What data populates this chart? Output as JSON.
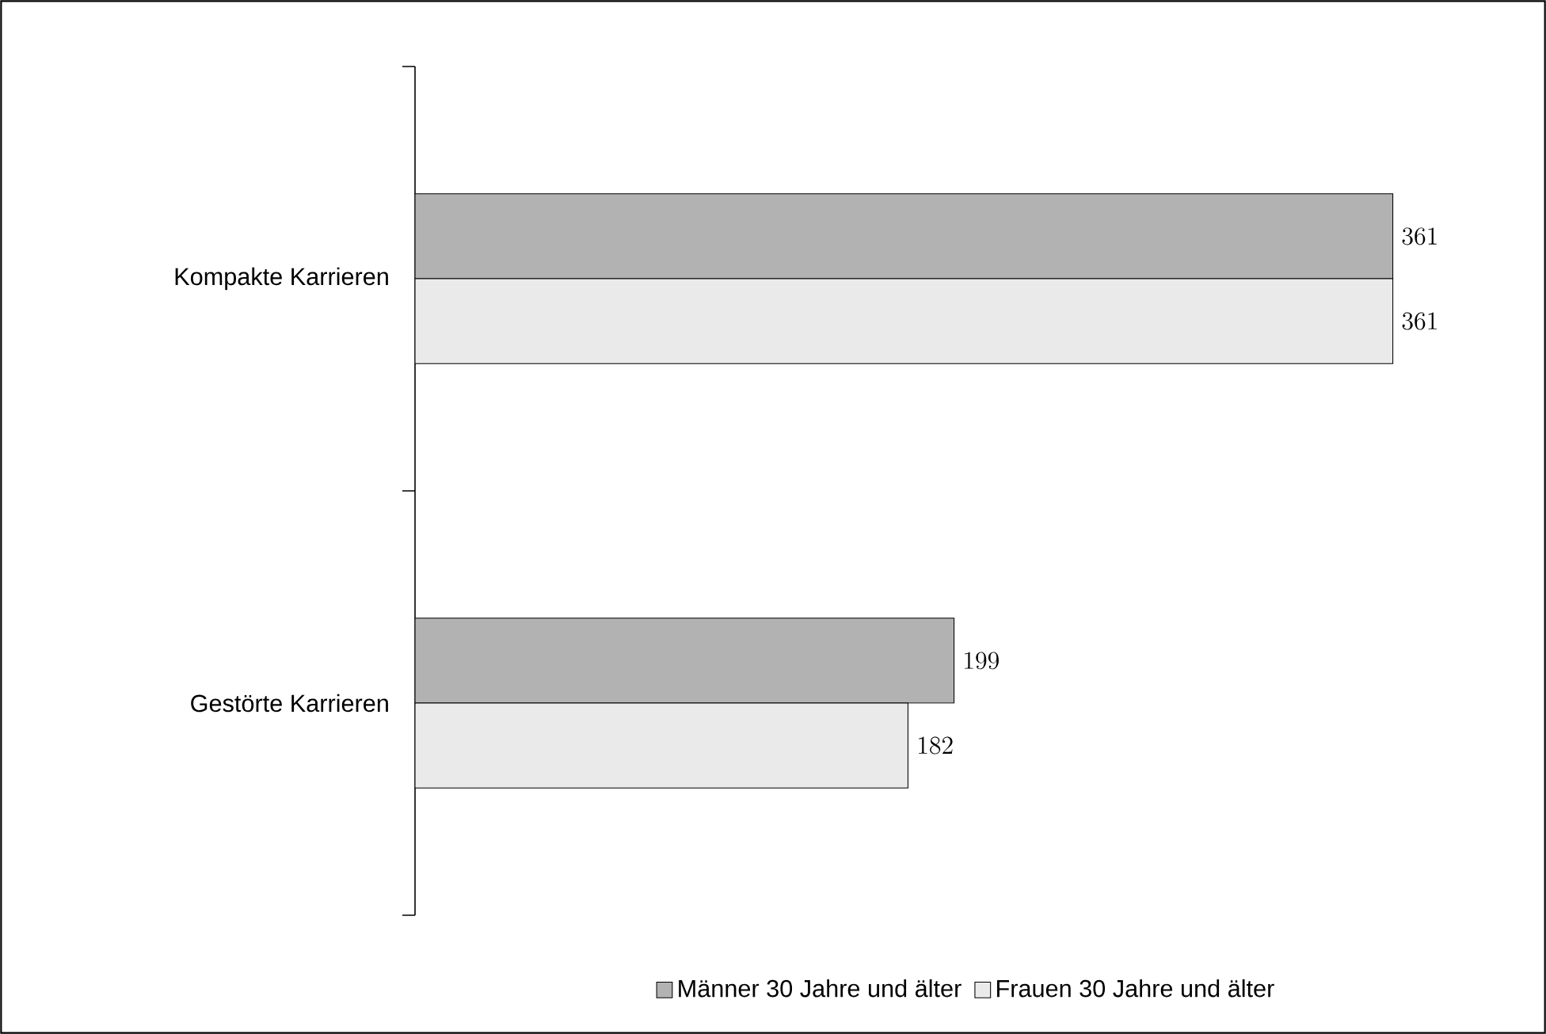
{
  "chart_data": {
    "type": "bar",
    "orientation": "horizontal",
    "categories": [
      "Kompakte Karrieren",
      "Gestörte Karrieren"
    ],
    "series": [
      {
        "name": "Männer 30 Jahre und älter",
        "color": "#b2b2b2",
        "values": [
          361,
          199
        ]
      },
      {
        "name": "Frauen 30 Jahre und älter",
        "color": "#eaeaea",
        "values": [
          361,
          182
        ]
      }
    ],
    "data_labels": true,
    "legend": "bottom"
  }
}
